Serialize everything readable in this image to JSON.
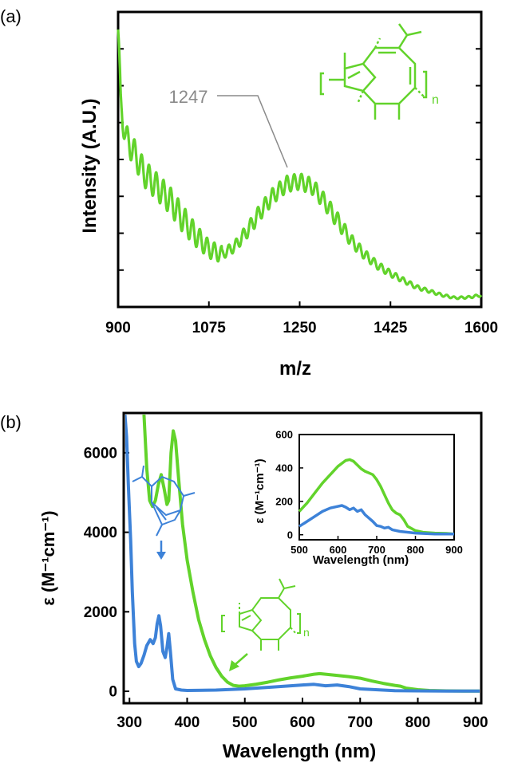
{
  "colors": {
    "green": "#62d32b",
    "blue": "#3d82d8",
    "annotation": "#8a8a8a",
    "axis": "#000000"
  },
  "chart_data": [
    {
      "panel_label": "(a)",
      "type": "line",
      "xlabel": "m/z",
      "ylabel": "Intensity (A.U.)",
      "xlim": [
        900,
        1600
      ],
      "xticks": [
        "900",
        "1075",
        "1250",
        "1425",
        "1600"
      ],
      "y_tick_labels_shown": false,
      "annotation": {
        "text": "1247",
        "x": 1247
      },
      "structure_label": "n",
      "series": [
        {
          "color": "#62d32b",
          "envelope": [
            [
              900,
              1.0
            ],
            [
              905,
              0.72
            ],
            [
              915,
              0.6
            ],
            [
              930,
              0.55
            ],
            [
              950,
              0.47
            ],
            [
              975,
              0.42
            ],
            [
              1000,
              0.37
            ],
            [
              1025,
              0.3
            ],
            [
              1050,
              0.24
            ],
            [
              1075,
              0.19
            ],
            [
              1100,
              0.17
            ],
            [
              1125,
              0.2
            ],
            [
              1150,
              0.26
            ],
            [
              1175,
              0.33
            ],
            [
              1200,
              0.39
            ],
            [
              1225,
              0.43
            ],
            [
              1250,
              0.44
            ],
            [
              1275,
              0.42
            ],
            [
              1300,
              0.36
            ],
            [
              1325,
              0.29
            ],
            [
              1350,
              0.22
            ],
            [
              1375,
              0.17
            ],
            [
              1400,
              0.13
            ],
            [
              1425,
              0.1
            ],
            [
              1450,
              0.075
            ],
            [
              1475,
              0.05
            ],
            [
              1500,
              0.035
            ],
            [
              1525,
              0.02
            ],
            [
              1550,
              0.01
            ],
            [
              1575,
              0.012
            ],
            [
              1600,
              0.02
            ]
          ],
          "oscillation_period": 14
        }
      ]
    },
    {
      "panel_label": "(b)",
      "type": "line",
      "xlabel": "Wavelength (nm)",
      "ylabel": "ε (M⁻¹cm⁻¹)",
      "xlim": [
        290,
        910
      ],
      "ylim": [
        -300,
        7000
      ],
      "xticks": [
        "300",
        "400",
        "500",
        "600",
        "700",
        "800",
        "900"
      ],
      "yticks": [
        "0",
        "2000",
        "4000",
        "6000"
      ],
      "structure_label": "n",
      "series": [
        {
          "color": "#62d32b",
          "points": [
            [
              325,
              7000
            ],
            [
              330,
              5600
            ],
            [
              335,
              4800
            ],
            [
              340,
              4650
            ],
            [
              345,
              4800
            ],
            [
              350,
              5200
            ],
            [
              355,
              5450
            ],
            [
              360,
              5100
            ],
            [
              365,
              4700
            ],
            [
              368,
              4800
            ],
            [
              372,
              6000
            ],
            [
              376,
              6550
            ],
            [
              380,
              6300
            ],
            [
              385,
              5400
            ],
            [
              392,
              4200
            ],
            [
              400,
              3300
            ],
            [
              410,
              2500
            ],
            [
              420,
              1800
            ],
            [
              430,
              1300
            ],
            [
              440,
              900
            ],
            [
              450,
              600
            ],
            [
              460,
              380
            ],
            [
              470,
              230
            ],
            [
              480,
              150
            ],
            [
              490,
              130
            ],
            [
              500,
              140
            ],
            [
              520,
              180
            ],
            [
              540,
              230
            ],
            [
              560,
              290
            ],
            [
              580,
              340
            ],
            [
              600,
              380
            ],
            [
              620,
              430
            ],
            [
              630,
              445
            ],
            [
              640,
              430
            ],
            [
              660,
              400
            ],
            [
              680,
              370
            ],
            [
              700,
              330
            ],
            [
              720,
              260
            ],
            [
              740,
              200
            ],
            [
              760,
              150
            ],
            [
              770,
              130
            ],
            [
              780,
              80
            ],
            [
              800,
              40
            ],
            [
              820,
              20
            ],
            [
              850,
              10
            ],
            [
              880,
              5
            ],
            [
              910,
              5
            ]
          ]
        },
        {
          "color": "#3d82d8",
          "points": [
            [
              292,
              7000
            ],
            [
              295,
              6400
            ],
            [
              298,
              5200
            ],
            [
              302,
              3800
            ],
            [
              305,
              2500
            ],
            [
              309,
              1200
            ],
            [
              312,
              750
            ],
            [
              316,
              620
            ],
            [
              320,
              700
            ],
            [
              325,
              900
            ],
            [
              330,
              1150
            ],
            [
              336,
              1300
            ],
            [
              341,
              1200
            ],
            [
              345,
              1350
            ],
            [
              348,
              1700
            ],
            [
              351,
              1900
            ],
            [
              354,
              1650
            ],
            [
              358,
              1000
            ],
            [
              362,
              850
            ],
            [
              365,
              1100
            ],
            [
              368,
              1450
            ],
            [
              371,
              1000
            ],
            [
              375,
              300
            ],
            [
              380,
              60
            ],
            [
              390,
              30
            ],
            [
              400,
              20
            ],
            [
              450,
              30
            ],
            [
              500,
              60
            ],
            [
              550,
              110
            ],
            [
              600,
              160
            ],
            [
              620,
              175
            ],
            [
              640,
              140
            ],
            [
              660,
              160
            ],
            [
              680,
              120
            ],
            [
              700,
              60
            ],
            [
              720,
              45
            ],
            [
              740,
              30
            ],
            [
              760,
              15
            ],
            [
              800,
              10
            ],
            [
              850,
              5
            ],
            [
              910,
              5
            ]
          ]
        }
      ],
      "annotations": [
        {
          "text": "",
          "kind": "arrow",
          "x": 352,
          "y": 2250
        },
        {
          "text": "",
          "kind": "arrow",
          "x": 478,
          "y": 300
        }
      ],
      "inset": {
        "type": "line",
        "xlabel": "Wavelength (nm)",
        "ylabel": "ε (M⁻¹cm⁻¹)",
        "xlim": [
          500,
          900
        ],
        "ylim": [
          -30,
          600
        ],
        "xticks": [
          "500",
          "600",
          "700",
          "800",
          "900"
        ],
        "yticks": [
          "0",
          "200",
          "400",
          "600"
        ],
        "series": [
          {
            "color": "#62d32b",
            "points": [
              [
                500,
                140
              ],
              [
                520,
                190
              ],
              [
                540,
                250
              ],
              [
                560,
                310
              ],
              [
                580,
                360
              ],
              [
                600,
                410
              ],
              [
                620,
                445
              ],
              [
                630,
                450
              ],
              [
                640,
                440
              ],
              [
                660,
                395
              ],
              [
                670,
                380
              ],
              [
                680,
                370
              ],
              [
                690,
                360
              ],
              [
                700,
                330
              ],
              [
                710,
                290
              ],
              [
                720,
                240
              ],
              [
                730,
                190
              ],
              [
                740,
                150
              ],
              [
                750,
                130
              ],
              [
                760,
                120
              ],
              [
                770,
                90
              ],
              [
                780,
                50
              ],
              [
                800,
                25
              ],
              [
                820,
                15
              ],
              [
                850,
                10
              ],
              [
                880,
                8
              ],
              [
                900,
                5
              ]
            ]
          },
          {
            "color": "#3d82d8",
            "points": [
              [
                500,
                50
              ],
              [
                520,
                80
              ],
              [
                540,
                110
              ],
              [
                560,
                140
              ],
              [
                580,
                160
              ],
              [
                600,
                170
              ],
              [
                610,
                175
              ],
              [
                620,
                165
              ],
              [
                630,
                150
              ],
              [
                640,
                160
              ],
              [
                650,
                140
              ],
              [
                660,
                150
              ],
              [
                670,
                120
              ],
              [
                680,
                100
              ],
              [
                690,
                80
              ],
              [
                700,
                55
              ],
              [
                710,
                50
              ],
              [
                720,
                40
              ],
              [
                730,
                45
              ],
              [
                740,
                30
              ],
              [
                760,
                20
              ],
              [
                800,
                10
              ],
              [
                850,
                5
              ],
              [
                900,
                5
              ]
            ]
          }
        ]
      }
    }
  ]
}
